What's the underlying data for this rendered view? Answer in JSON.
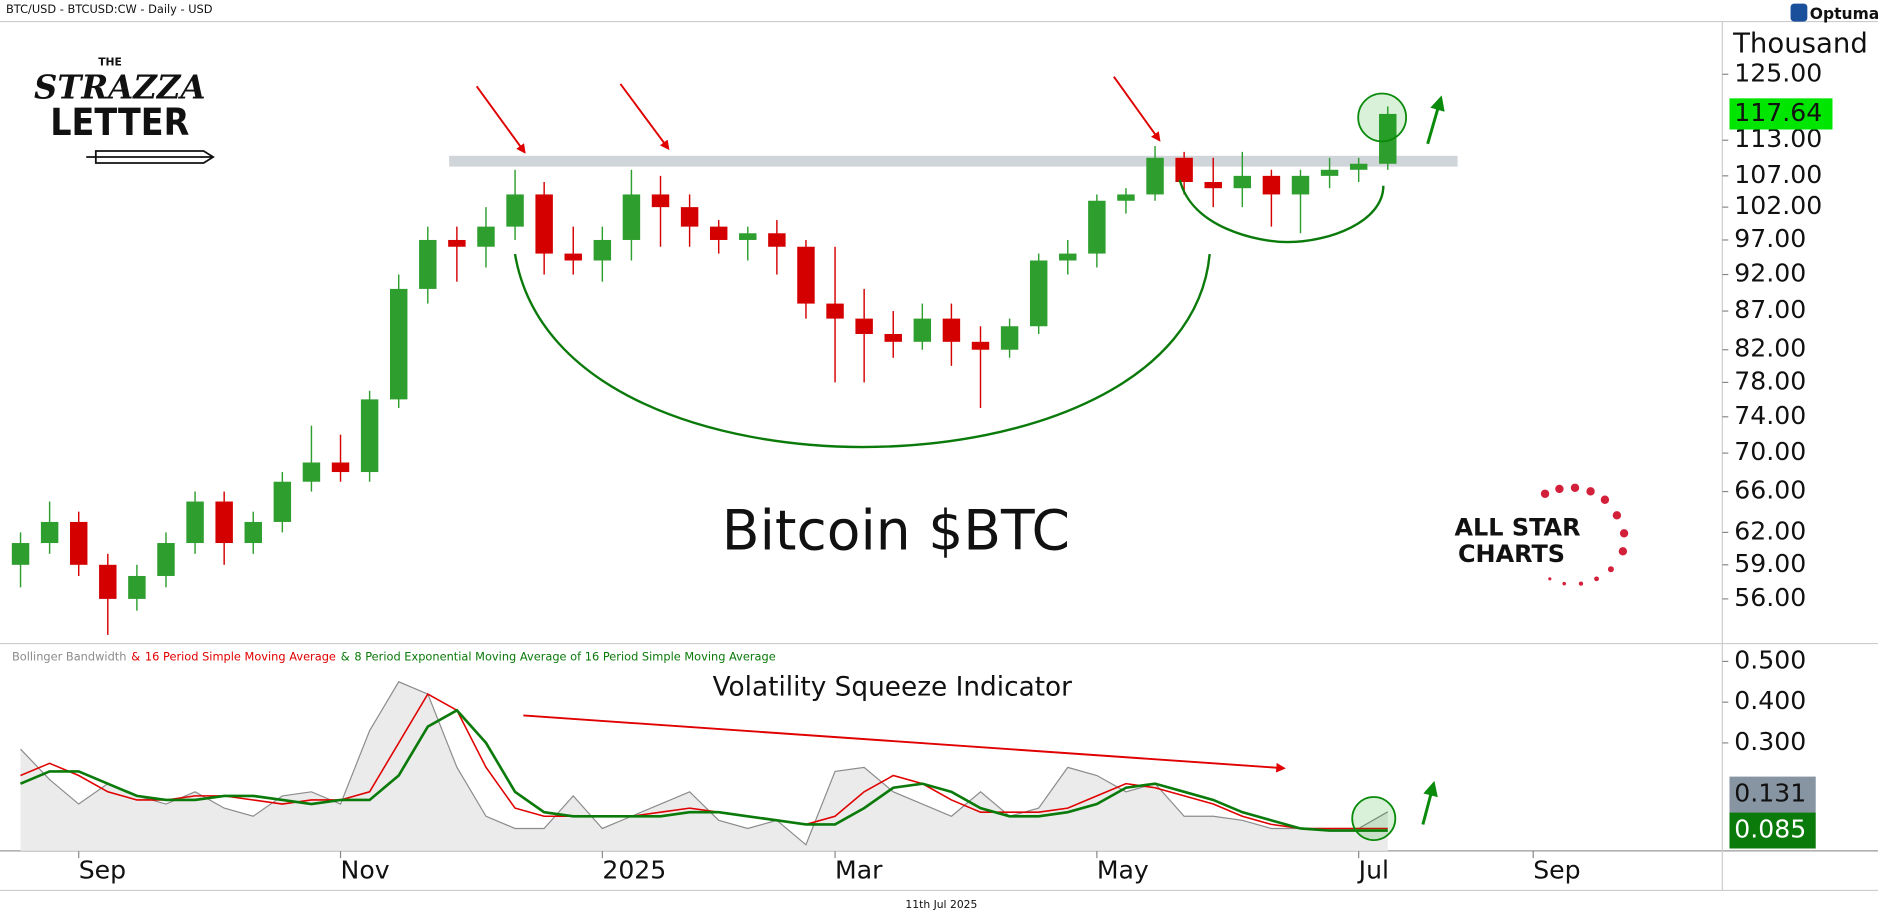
{
  "header": "BTC/USD - BTCUSD:CW - Daily - USD",
  "brand": "Optuma",
  "footer": "11th Jul 2025",
  "logos": {
    "strazza": [
      "THE",
      "STRAZZA",
      "LETTER"
    ],
    "allstar": [
      "ALL STAR",
      "CHARTS"
    ]
  },
  "chart_data": [
    {
      "type": "candlestick",
      "annotation": "Bitcoin $BTC",
      "unit_label": "Thousand",
      "log_scale": true,
      "up_color": "#2e9e2e",
      "down_color": "#d40000",
      "categories": [
        null,
        null,
        "Sep",
        null,
        null,
        null,
        null,
        null,
        null,
        null,
        null,
        "Nov",
        null,
        null,
        null,
        null,
        null,
        null,
        null,
        null,
        "2025",
        null,
        null,
        null,
        null,
        null,
        null,
        null,
        "Mar",
        null,
        null,
        null,
        null,
        null,
        null,
        null,
        null,
        "May",
        null,
        null,
        null,
        null,
        null,
        null,
        null,
        null,
        "Jul",
        null,
        null,
        null,
        null,
        null,
        "Sep",
        null,
        null,
        null,
        null,
        null,
        null
      ],
      "open": [
        59,
        61,
        63,
        59,
        56,
        58,
        61,
        65,
        61,
        63,
        67,
        69,
        68,
        76,
        90,
        97,
        96,
        99,
        104,
        95,
        94,
        97,
        104,
        102,
        99,
        97,
        98,
        96,
        88,
        86,
        84,
        83,
        86,
        83,
        82,
        85,
        94,
        95,
        103,
        104,
        110,
        106,
        105,
        107,
        104,
        107,
        108,
        109,
        null,
        null,
        null,
        null,
        null,
        null,
        null,
        null,
        null,
        null,
        null
      ],
      "high": [
        62,
        65,
        64,
        60,
        59,
        62,
        66,
        66,
        64,
        68,
        73,
        72,
        77,
        92,
        99,
        99,
        102,
        108,
        106,
        99,
        99,
        108,
        107,
        104,
        100,
        99,
        100,
        97,
        96,
        90,
        87,
        88,
        88,
        85,
        86,
        95,
        97,
        104,
        105,
        112,
        111,
        110,
        111,
        108,
        108,
        110,
        110,
        119,
        null,
        null,
        null,
        null,
        null,
        null,
        null,
        null,
        null,
        null,
        null
      ],
      "low": [
        57,
        60,
        58,
        53,
        55,
        57,
        60,
        59,
        60,
        62,
        66,
        67,
        67,
        75,
        88,
        91,
        93,
        97,
        92,
        92,
        91,
        94,
        96,
        96,
        95,
        94,
        92,
        86,
        78,
        78,
        81,
        82,
        80,
        75,
        81,
        84,
        92,
        93,
        101,
        103,
        104,
        102,
        102,
        99,
        98,
        105,
        106,
        108,
        null,
        null,
        null,
        null,
        null,
        null,
        null,
        null,
        null,
        null,
        null
      ],
      "close": [
        61,
        63,
        59,
        56,
        58,
        61,
        65,
        61,
        63,
        67,
        69,
        68,
        76,
        90,
        97,
        96,
        99,
        104,
        95,
        94,
        97,
        104,
        102,
        99,
        97,
        98,
        96,
        88,
        86,
        84,
        83,
        86,
        83,
        82,
        85,
        94,
        95,
        103,
        104,
        110,
        106,
        105,
        107,
        104,
        107,
        108,
        109,
        117.64,
        null,
        null,
        null,
        null,
        null,
        null,
        null,
        null,
        null,
        null,
        null
      ],
      "ylim": [
        52.3,
        135.5
      ],
      "yticks": [
        {
          "value": 125,
          "label": "125.00"
        },
        {
          "value": 113,
          "label": "113.00"
        },
        {
          "value": 107,
          "label": "107.00"
        },
        {
          "value": 102,
          "label": "102.00"
        },
        {
          "value": 97,
          "label": "97.00"
        },
        {
          "value": 92,
          "label": "92.00"
        },
        {
          "value": 87,
          "label": "87.00"
        },
        {
          "value": 82,
          "label": "82.00"
        },
        {
          "value": 78,
          "label": "78.00"
        },
        {
          "value": 74,
          "label": "74.00"
        },
        {
          "value": 70,
          "label": "70.00"
        },
        {
          "value": 66,
          "label": "66.00"
        },
        {
          "value": 62,
          "label": "62.00"
        },
        {
          "value": 59,
          "label": "59.00"
        },
        {
          "value": 56,
          "label": "56.00"
        }
      ]
    },
    {
      "type": "line",
      "annotation": "Volatility Squeeze Indicator",
      "legend_separator": "&",
      "series": [
        {
          "name": "Bollinger Bandwidth",
          "color": "#8c8c8c",
          "values": [
            0.285,
            0.21,
            0.15,
            0.2,
            0.17,
            0.15,
            0.18,
            0.14,
            0.12,
            0.17,
            0.18,
            0.15,
            0.33,
            0.45,
            0.42,
            0.24,
            0.12,
            0.09,
            0.09,
            0.17,
            0.09,
            0.12,
            0.15,
            0.18,
            0.11,
            0.09,
            0.11,
            0.05,
            0.23,
            0.24,
            0.18,
            0.15,
            0.12,
            0.18,
            0.12,
            0.14,
            0.24,
            0.22,
            0.18,
            0.2,
            0.12,
            0.12,
            0.11,
            0.09,
            0.09,
            0.09,
            0.09,
            0.131,
            null,
            null,
            null,
            null,
            null,
            null,
            null,
            null,
            null,
            null,
            null
          ]
        },
        {
          "name": "16 Period Simple Moving Average",
          "color": "#e00000",
          "values": [
            0.22,
            0.25,
            0.22,
            0.18,
            0.16,
            0.16,
            0.17,
            0.17,
            0.16,
            0.15,
            0.16,
            0.16,
            0.18,
            0.3,
            0.42,
            0.38,
            0.24,
            0.14,
            0.12,
            0.12,
            0.12,
            0.12,
            0.13,
            0.14,
            0.13,
            0.12,
            0.11,
            0.1,
            0.12,
            0.18,
            0.22,
            0.2,
            0.16,
            0.13,
            0.13,
            0.13,
            0.14,
            0.17,
            0.2,
            0.19,
            0.17,
            0.15,
            0.12,
            0.1,
            0.09,
            0.09,
            0.09,
            0.09,
            null,
            null,
            null,
            null,
            null,
            null,
            null,
            null,
            null,
            null,
            null
          ]
        },
        {
          "name": "8 Period Exponential Moving Average of 16 Period Simple Moving Average",
          "color": "#0a7a0a",
          "values": [
            0.2,
            0.23,
            0.23,
            0.2,
            0.17,
            0.16,
            0.16,
            0.17,
            0.17,
            0.16,
            0.15,
            0.16,
            0.16,
            0.22,
            0.34,
            0.38,
            0.3,
            0.18,
            0.13,
            0.12,
            0.12,
            0.12,
            0.12,
            0.13,
            0.13,
            0.12,
            0.11,
            0.1,
            0.1,
            0.14,
            0.19,
            0.2,
            0.18,
            0.14,
            0.12,
            0.12,
            0.13,
            0.15,
            0.19,
            0.2,
            0.18,
            0.16,
            0.13,
            0.11,
            0.09,
            0.085,
            0.085,
            0.085,
            null,
            null,
            null,
            null,
            null,
            null,
            null,
            null,
            null,
            null,
            null
          ]
        }
      ],
      "ylim": [
        0.035,
        0.535
      ],
      "yticks": [
        {
          "value": 0.5,
          "label": "0.500"
        },
        {
          "value": 0.4,
          "label": "0.400"
        },
        {
          "value": 0.3,
          "label": "0.300"
        }
      ]
    }
  ]
}
